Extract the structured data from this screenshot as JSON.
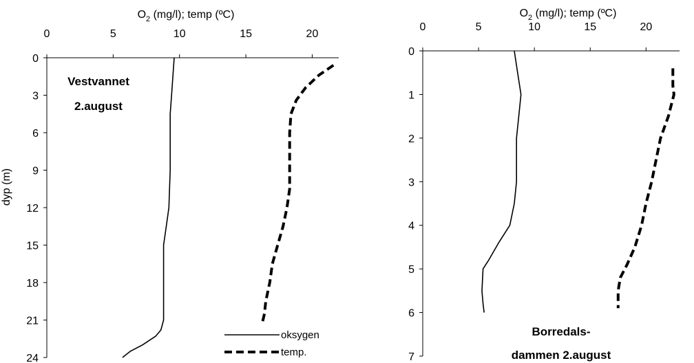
{
  "chart_data": [
    {
      "type": "line",
      "title": "",
      "xlabel": "O₂ (mg/l); temp (ºC)",
      "xlabel_parts": {
        "pre": "O",
        "sub": "2",
        "post": " (mg/l); temp (ºC)"
      },
      "ylabel": "dyp (m)",
      "xlim": [
        0,
        22
      ],
      "ylim": [
        24,
        0
      ],
      "y_inverted": true,
      "x_axis_position": "top",
      "x_ticks": [
        0,
        5,
        10,
        15,
        20
      ],
      "x_tick_labels": [
        "0",
        "5",
        "10",
        "15",
        "20"
      ],
      "y_ticks": [
        0,
        3,
        6,
        9,
        12,
        15,
        18,
        21,
        24
      ],
      "y_tick_labels": [
        "0",
        "3",
        "6",
        "9",
        "12",
        "15",
        "18",
        "21",
        "24"
      ],
      "annotation": [
        "Vestvannet",
        "2.august"
      ],
      "grid": false,
      "legend_position": "bottom-right",
      "series": [
        {
          "name": "oksygen",
          "style": "solid",
          "color": "#000000",
          "points": [
            [
              9.6,
              0
            ],
            [
              9.5,
              1.5
            ],
            [
              9.4,
              3
            ],
            [
              9.3,
              4.5
            ],
            [
              9.3,
              6
            ],
            [
              9.3,
              9
            ],
            [
              9.2,
              12
            ],
            [
              9.0,
              13.5
            ],
            [
              8.8,
              15
            ],
            [
              8.8,
              18
            ],
            [
              8.8,
              21
            ],
            [
              8.6,
              21.8
            ],
            [
              8.2,
              22.3
            ],
            [
              7.2,
              23
            ],
            [
              6.3,
              23.5
            ],
            [
              5.7,
              24
            ]
          ]
        },
        {
          "name": "temp.",
          "style": "dashed",
          "color": "#000000",
          "points": [
            [
              21.6,
              0.6
            ],
            [
              20.5,
              1.4
            ],
            [
              19.5,
              2.4
            ],
            [
              18.8,
              3.4
            ],
            [
              18.4,
              4.5
            ],
            [
              18.3,
              6
            ],
            [
              18.3,
              9
            ],
            [
              18.3,
              10.5
            ],
            [
              18.1,
              12
            ],
            [
              17.8,
              13.5
            ],
            [
              17.4,
              15
            ],
            [
              17.0,
              16.5
            ],
            [
              16.8,
              18
            ],
            [
              16.5,
              19.5
            ],
            [
              16.4,
              20.5
            ],
            [
              16.2,
              21.4
            ]
          ]
        }
      ]
    },
    {
      "type": "line",
      "title": "",
      "xlabel": "O₂ (mg/l); temp (ºC)",
      "xlabel_parts": {
        "pre": "O",
        "sub": "2",
        "post": " (mg/l); temp (ºC)"
      },
      "ylabel": "",
      "xlim": [
        0,
        23
      ],
      "ylim": [
        7,
        0
      ],
      "y_inverted": true,
      "x_axis_position": "top",
      "x_ticks": [
        0,
        5,
        10,
        15,
        20
      ],
      "x_tick_labels": [
        "0",
        "5",
        "10",
        "15",
        "20"
      ],
      "y_ticks": [
        0,
        1,
        2,
        3,
        4,
        5,
        6,
        7
      ],
      "y_tick_labels": [
        "0",
        "1",
        "2",
        "3",
        "4",
        "5",
        "6",
        "7"
      ],
      "annotation": [
        "Borredals-",
        "dammen 2.august"
      ],
      "grid": false,
      "series": [
        {
          "name": "oksygen",
          "style": "solid",
          "color": "#000000",
          "points": [
            [
              8.2,
              0
            ],
            [
              8.5,
              0.5
            ],
            [
              8.8,
              1.0
            ],
            [
              8.6,
              1.5
            ],
            [
              8.4,
              2.0
            ],
            [
              8.4,
              3.0
            ],
            [
              8.2,
              3.5
            ],
            [
              7.8,
              4.0
            ],
            [
              6.8,
              4.4
            ],
            [
              5.9,
              4.8
            ],
            [
              5.4,
              5.0
            ],
            [
              5.3,
              5.5
            ],
            [
              5.4,
              5.8
            ],
            [
              5.5,
              6.0
            ]
          ]
        },
        {
          "name": "temp.",
          "style": "dashed",
          "color": "#000000",
          "points": [
            [
              22.4,
              0.4
            ],
            [
              22.4,
              0.8
            ],
            [
              22.5,
              1.0
            ],
            [
              22.0,
              1.5
            ],
            [
              21.3,
              2.0
            ],
            [
              20.9,
              2.5
            ],
            [
              20.5,
              3.0
            ],
            [
              20.0,
              3.5
            ],
            [
              19.6,
              4.0
            ],
            [
              19.0,
              4.5
            ],
            [
              18.3,
              4.9
            ],
            [
              17.7,
              5.2
            ],
            [
              17.5,
              5.5
            ],
            [
              17.5,
              5.9
            ]
          ]
        }
      ]
    }
  ]
}
